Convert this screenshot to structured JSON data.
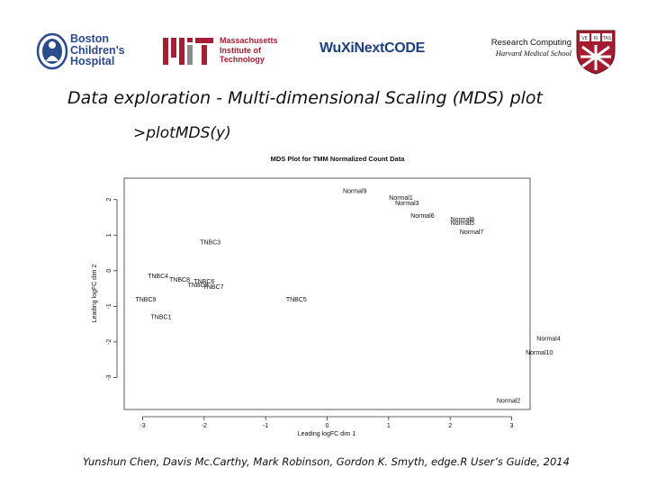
{
  "logos": {
    "bch_lines": [
      "Boston",
      "Children's",
      "Hospital"
    ],
    "mit_lines": [
      "Massachusetts",
      "Institute of",
      "Technology"
    ],
    "wuxi_text": "WuXiNextCODE",
    "rc_title": "Research Computing",
    "rc_subtitle": "Harvard Medical School",
    "veritas": [
      "VE",
      "RI",
      "TAS"
    ]
  },
  "slide": {
    "title": "Data exploration - Multi-dimensional Scaling (MDS) plot",
    "command": ">plotMDS(y)",
    "caption": "Yunshun Chen, Davis Mc.Carthy, Mark Robinson, Gordon K. Smyth, edge.R User’s Guide, 2014"
  },
  "chart_data": {
    "type": "scatter",
    "title": "MDS Plot for TMM Normalized Count Data",
    "xlabel": "Leading logFC dim 1",
    "ylabel": "Leading logFC dim 2",
    "xlim": [
      -3.3,
      3.3
    ],
    "ylim": [
      -3.9,
      2.6
    ],
    "xticks": [
      -3,
      -2,
      -1,
      0,
      1,
      2,
      3
    ],
    "yticks": [
      -3,
      -2,
      -1,
      0,
      1,
      2
    ],
    "points": [
      {
        "label": "Normal9",
        "x": 0.45,
        "y": 2.25
      },
      {
        "label": "Normal1",
        "x": 1.2,
        "y": 2.05
      },
      {
        "label": "Normal3",
        "x": 1.3,
        "y": 1.9
      },
      {
        "label": "Normal6",
        "x": 1.55,
        "y": 1.55
      },
      {
        "label": "Normal8",
        "x": 2.2,
        "y": 1.45
      },
      {
        "label": "Normal5",
        "x": 2.2,
        "y": 1.35
      },
      {
        "label": "Normal7",
        "x": 2.35,
        "y": 1.1
      },
      {
        "label": "TNBC3",
        "x": -1.9,
        "y": 0.8
      },
      {
        "label": "TNBC4",
        "x": -2.75,
        "y": -0.15
      },
      {
        "label": "TNBC8",
        "x": -2.4,
        "y": -0.25
      },
      {
        "label": "TNBC6",
        "x": -2.0,
        "y": -0.3
      },
      {
        "label": "TNBC2",
        "x": -2.1,
        "y": -0.4
      },
      {
        "label": "TNBC7",
        "x": -1.85,
        "y": -0.45
      },
      {
        "label": "TNBC9",
        "x": -2.95,
        "y": -0.8
      },
      {
        "label": "TNBC1",
        "x": -2.7,
        "y": -1.3
      },
      {
        "label": "TNBC5",
        "x": -0.5,
        "y": -0.8
      },
      {
        "label": "Normal4",
        "x": 3.6,
        "y": -1.9
      },
      {
        "label": "Normal10",
        "x": 3.45,
        "y": -2.3
      },
      {
        "label": "Normal2",
        "x": 2.95,
        "y": -3.65
      }
    ]
  },
  "colors": {
    "mit_red": "#a31f34",
    "bch_blue": "#2b4c8c",
    "wuxi_blue": "#1c3f7d",
    "wuxi_green": "#3aa44a",
    "harvard_crimson": "#a51c30"
  }
}
